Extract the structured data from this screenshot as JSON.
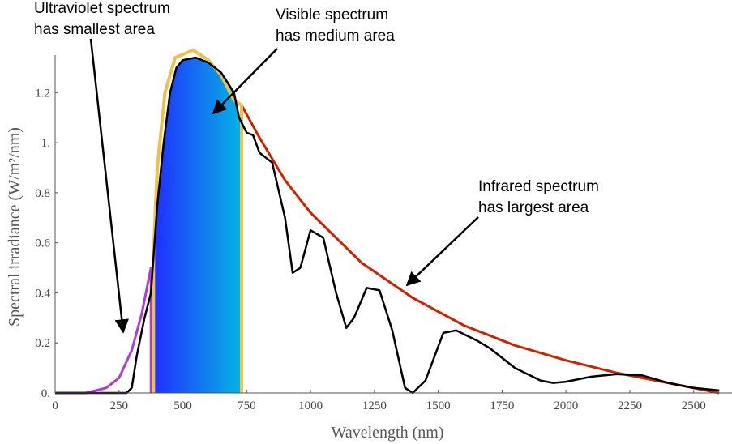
{
  "chart_data": {
    "type": "line",
    "xlabel": "Wavelength (nm)",
    "ylabel": "Spectral irradiance (W/m²/nm)",
    "xlim": [
      0,
      2650
    ],
    "ylim": [
      0,
      1.35
    ],
    "xticks": [
      0,
      250,
      500,
      750,
      1000,
      1250,
      1500,
      1750,
      2000,
      2250,
      2500
    ],
    "yticks": [
      {
        "value": 0,
        "label": "0."
      },
      0.2,
      0.4,
      0.6,
      0.8,
      {
        "value": 1,
        "label": "1."
      },
      1.2
    ],
    "grid": false,
    "series": [
      {
        "color": "#000000",
        "x": [
          0,
          280,
          300,
          320,
          350,
          375,
          400,
          425,
          450,
          475,
          500,
          550,
          600,
          650,
          700,
          720,
          750,
          775,
          800,
          850,
          900,
          930,
          960,
          1000,
          1050,
          1100,
          1140,
          1170,
          1220,
          1270,
          1320,
          1370,
          1400,
          1450,
          1520,
          1570,
          1650,
          1700,
          1800,
          1900,
          1950,
          2000,
          2100,
          2200,
          2300,
          2400,
          2500,
          2600
        ],
        "values": [
          0,
          0,
          0.02,
          0.15,
          0.3,
          0.4,
          0.75,
          1.0,
          1.2,
          1.3,
          1.33,
          1.34,
          1.32,
          1.28,
          1.2,
          1.1,
          1.04,
          1.03,
          0.96,
          0.92,
          0.7,
          0.48,
          0.5,
          0.65,
          0.62,
          0.4,
          0.26,
          0.3,
          0.42,
          0.41,
          0.25,
          0.02,
          0.0,
          0.05,
          0.24,
          0.25,
          0.21,
          0.18,
          0.1,
          0.05,
          0.04,
          0.045,
          0.065,
          0.075,
          0.07,
          0.04,
          0.02,
          0.01
        ]
      },
      {
        "color": "#b03cd6",
        "x": [
          0,
          120,
          200,
          250,
          300,
          340,
          375,
          375
        ],
        "values": [
          0,
          0,
          0.02,
          0.06,
          0.17,
          0.32,
          0.5,
          0
        ]
      },
      {
        "color": "#efc04a",
        "x": [
          385,
          385,
          400,
          430,
          470,
          540,
          600,
          650,
          700,
          730,
          730
        ],
        "values": [
          0,
          0.55,
          0.9,
          1.2,
          1.34,
          1.37,
          1.33,
          1.27,
          1.17,
          1.15,
          0
        ]
      },
      {
        "color": "#cc2200",
        "x": [
          730,
          800,
          900,
          1000,
          1200,
          1400,
          1600,
          1800,
          2000,
          2200,
          2400,
          2600
        ],
        "values": [
          1.15,
          1.02,
          0.85,
          0.72,
          0.52,
          0.38,
          0.27,
          0.19,
          0.13,
          0.08,
          0.04,
          0.0
        ]
      }
    ],
    "annotations": [
      {
        "text": [
          "Ultraviolet spectrum",
          "has smallest area"
        ]
      },
      {
        "text": [
          "Visible spectrum",
          "has medium area"
        ]
      },
      {
        "text": [
          "Infrared spectrum",
          "has largest area"
        ]
      }
    ]
  }
}
